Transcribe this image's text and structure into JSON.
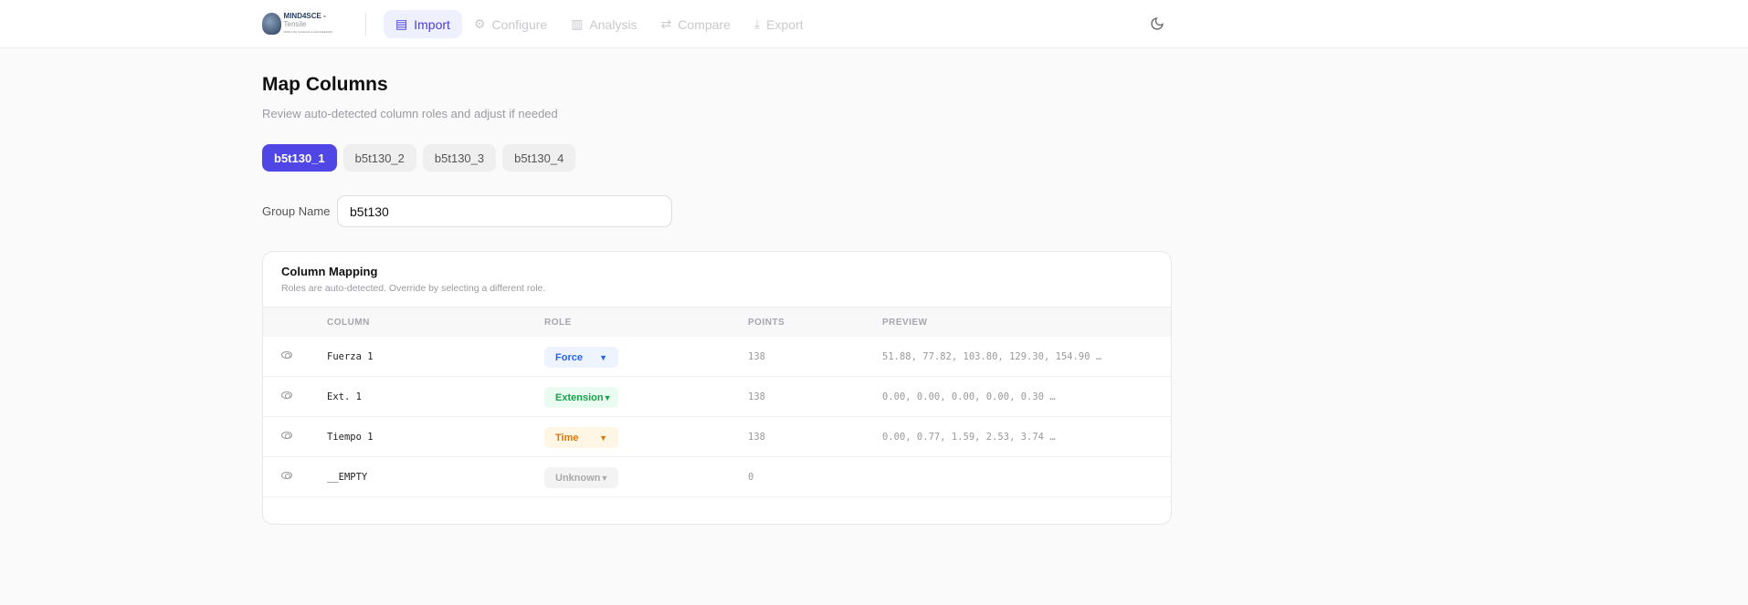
{
  "header": {
    "logo_text": "MIND4SCE",
    "logo_suffix": "Tensile",
    "logo_tagline": "MIND FOR SCIENCE & ENGINEERING",
    "nav": [
      {
        "label": "Import",
        "icon": "file-icon",
        "active": true
      },
      {
        "label": "Configure",
        "icon": "gear-icon"
      },
      {
        "label": "Analysis",
        "icon": "bar-chart-icon"
      },
      {
        "label": "Compare",
        "icon": "compare-icon"
      },
      {
        "label": "Export",
        "icon": "download-icon"
      }
    ],
    "theme_icon": "moon-icon"
  },
  "page": {
    "title": "Map Columns",
    "subtitle": "Review auto-detected column roles and adjust if needed",
    "file_tabs": [
      "b5t130_1",
      "b5t130_2",
      "b5t130_3",
      "b5t130_4"
    ],
    "active_tab": "b5t130_1",
    "group_name_label": "Group Name",
    "group_name_value": "b5t130"
  },
  "mapping": {
    "title": "Column Mapping",
    "description": "Roles are auto-detected. Override by selecting a different role.",
    "headers": [
      "COLUMN",
      "ROLE",
      "POINTS",
      "PREVIEW"
    ],
    "rows": [
      {
        "column": "Fuerza 1",
        "role": "Force",
        "points": "138",
        "preview": "51.88, 77.82, 103.80, 129.30, 154.90 …",
        "bg": "#eef4ff",
        "fg": "#2563eb"
      },
      {
        "column": "Ext. 1",
        "role": "Extension",
        "points": "138",
        "preview": "0.00, 0.00, 0.00, 0.00, 0.30 …",
        "bg": "#eafbf1",
        "fg": "#16a34a"
      },
      {
        "column": "Tiempo 1",
        "role": "Time",
        "points": "138",
        "preview": "0.00, 0.77, 1.59, 2.53, 3.74 …",
        "bg": "#fff6e5",
        "fg": "#d97706"
      },
      {
        "column": "__EMPTY",
        "role": "Unknown",
        "points": "0",
        "preview": "",
        "bg": "#f3f3f3",
        "fg": "#aaaaaa"
      }
    ]
  }
}
